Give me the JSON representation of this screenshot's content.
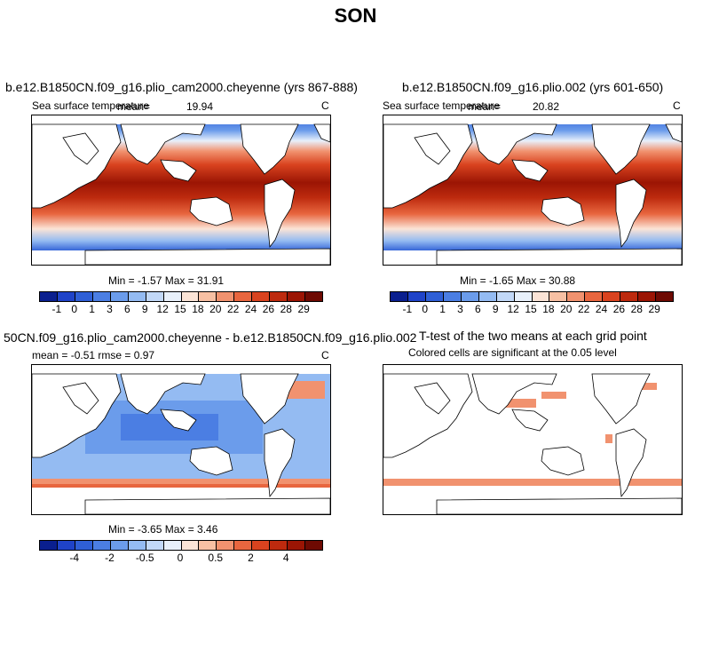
{
  "figure_title": "SON",
  "panels": {
    "top_left": {
      "title": "b.e12.B1850CN.f09_g16.plio_cam2000.cheyenne (yrs 867-888)",
      "variable": "Sea surface temperature",
      "mean_label": "mean=",
      "mean_value": "19.94",
      "units": "C",
      "minmax": "Min =   -1.57 Max =   31.91"
    },
    "top_right": {
      "title": "b.e12.B1850CN.f09_g16.plio.002 (yrs 601-650)",
      "variable": "Sea surface temperature",
      "mean_label": "mean=",
      "mean_value": "20.82",
      "units": "C",
      "minmax": "Min =   -1.65 Max =   30.88"
    },
    "bottom_left": {
      "title": "50CN.f09_g16.plio_cam2000.cheyenne - b.e12.B1850CN.f09_g16.plio.002",
      "stats": "mean =   -0.51     rmse =    0.97",
      "units": "C",
      "minmax": "Min =   -3.65 Max =    3.46"
    },
    "bottom_right": {
      "title": "T-test of the two means at each grid point",
      "subtitle": "Colored cells are significant at the 0.05 level"
    }
  },
  "colorbars": {
    "sst_labels": [
      "-1",
      "0",
      "1",
      "3",
      "6",
      "9",
      "12",
      "15",
      "18",
      "20",
      "22",
      "24",
      "26",
      "28",
      "29"
    ],
    "diff_labels": [
      "-4",
      "-2",
      "-0.5",
      "0",
      "0.5",
      "2",
      "4"
    ],
    "colors": [
      "#0a1f8f",
      "#1f43c8",
      "#2f5fd6",
      "#4b7ee3",
      "#6b9ceb",
      "#94bbf2",
      "#c2d8f7",
      "#e8f0fa",
      "#fbe4d6",
      "#f7c0a3",
      "#f1926f",
      "#e8663f",
      "#d9431f",
      "#bd2a0e",
      "#9b1504",
      "#6e0a02"
    ]
  }
}
